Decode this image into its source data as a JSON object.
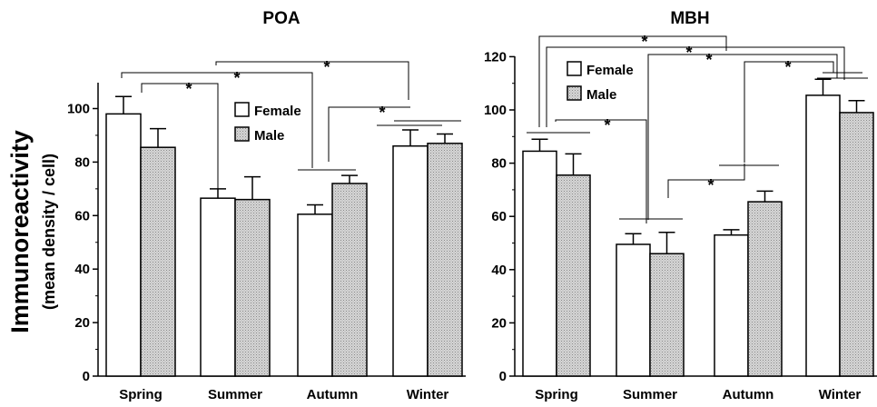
{
  "colors": {
    "female": "#ffffff",
    "male": "#d2d2d2",
    "stroke": "#000000"
  },
  "y_axis": {
    "label": "Immunoreactivity",
    "sublabel": "(mean density / cell)"
  },
  "chart_data": [
    {
      "type": "bar",
      "title": "POA",
      "categories": [
        "Spring",
        "Summer",
        "Autumn",
        "Winter"
      ],
      "ylim": [
        0,
        110
      ],
      "yticks": [
        0,
        20,
        40,
        60,
        80,
        100
      ],
      "legend": {
        "position": "top-right",
        "entries": [
          "Female",
          "Male"
        ]
      },
      "series": [
        {
          "name": "Female",
          "values": [
            98,
            66.5,
            60.5,
            86
          ],
          "errors": [
            6.5,
            3.5,
            3.5,
            6
          ]
        },
        {
          "name": "Male",
          "values": [
            85.5,
            66,
            72,
            87
          ],
          "errors": [
            7,
            8.5,
            3,
            3.5
          ]
        }
      ],
      "significance": [
        "*",
        "*",
        "*",
        "*"
      ]
    },
    {
      "type": "bar",
      "title": "MBH",
      "categories": [
        "Spring",
        "Summer",
        "Autumn",
        "Winter"
      ],
      "ylim": [
        0,
        120
      ],
      "yticks": [
        0,
        20,
        40,
        60,
        80,
        100,
        120
      ],
      "legend": {
        "position": "top-left",
        "entries": [
          "Female",
          "Male"
        ]
      },
      "series": [
        {
          "name": "Female",
          "values": [
            84.5,
            49.5,
            53,
            105.5
          ],
          "errors": [
            4.5,
            4,
            2,
            6
          ]
        },
        {
          "name": "Male",
          "values": [
            75.5,
            46,
            65.5,
            99
          ],
          "errors": [
            8,
            8,
            4,
            4.5
          ]
        }
      ],
      "significance": [
        "*",
        "*",
        "*",
        "*",
        "*"
      ]
    }
  ]
}
